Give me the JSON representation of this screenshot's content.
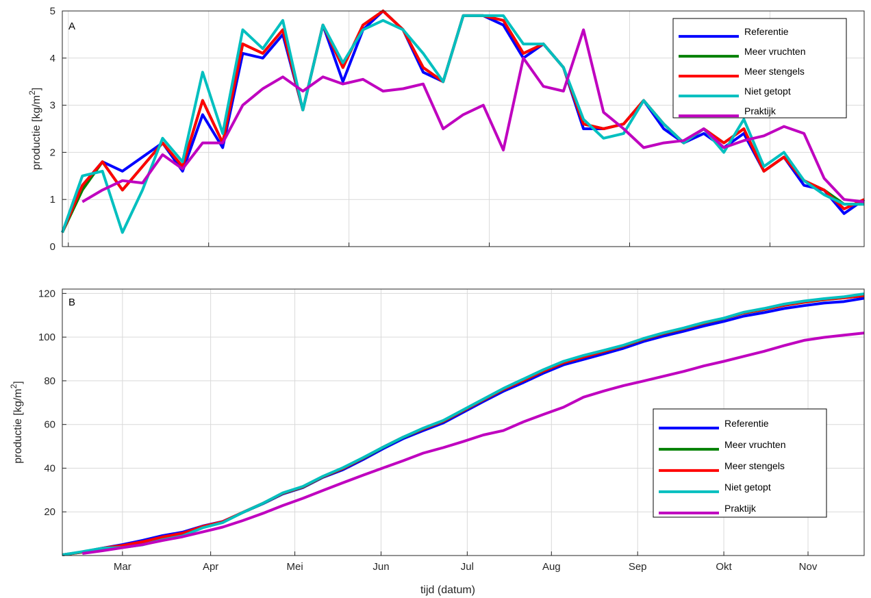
{
  "xlabel": "tijd (datum)",
  "chart_data": [
    {
      "type": "line",
      "panel": "A",
      "ylabel_main": "productie [kg/m",
      "ylabel_sup": "2",
      "ylabel_tail": "]",
      "ylim": [
        0,
        5
      ],
      "yticks": [
        0,
        1,
        2,
        3,
        4,
        5
      ],
      "xlim": [
        0,
        40
      ],
      "xticks_minor": [
        0.3,
        7.3,
        14.3,
        21.3,
        28.3,
        35.3
      ],
      "grid": true,
      "legend_position": "top-right",
      "series": [
        {
          "name": "Referentie",
          "color": "#0000ff",
          "x": [
            0,
            1,
            2,
            3,
            4,
            5,
            6,
            7,
            8,
            9,
            10,
            11,
            12,
            13,
            14,
            15,
            16,
            17,
            18,
            19,
            20,
            21,
            22,
            23,
            24,
            25,
            26,
            27,
            28,
            29,
            30,
            31,
            32,
            33,
            34,
            35,
            36,
            37,
            38,
            39,
            40
          ],
          "values": [
            0.3,
            1.3,
            1.8,
            1.6,
            1.9,
            2.2,
            1.6,
            2.8,
            2.1,
            4.1,
            4.0,
            4.5,
            2.9,
            4.7,
            3.5,
            4.6,
            5.0,
            4.6,
            3.7,
            3.5,
            4.9,
            4.9,
            4.7,
            4.0,
            4.3,
            3.8,
            2.5,
            2.5,
            2.6,
            3.1,
            2.5,
            2.2,
            2.4,
            2.1,
            2.4,
            1.6,
            1.9,
            1.3,
            1.2,
            0.7,
            1.0
          ]
        },
        {
          "name": "Meer vruchten",
          "color": "#008000",
          "x": [
            0,
            1,
            2,
            3,
            4,
            5,
            6,
            7,
            8,
            9,
            10,
            11,
            12,
            13,
            14,
            15,
            16,
            17,
            18,
            19,
            20,
            21,
            22,
            23,
            24,
            25,
            26,
            27,
            28,
            29,
            30,
            31,
            32,
            33,
            34,
            35,
            36,
            37,
            38,
            39,
            40
          ],
          "values": [
            0.3,
            1.2,
            1.8,
            1.2,
            1.7,
            2.2,
            1.7,
            3.1,
            2.2,
            4.3,
            4.1,
            4.6,
            2.9,
            4.7,
            3.8,
            4.7,
            5.0,
            4.6,
            3.8,
            3.5,
            4.9,
            4.9,
            4.8,
            4.1,
            4.3,
            3.8,
            2.6,
            2.5,
            2.6,
            3.1,
            2.6,
            2.2,
            2.5,
            2.2,
            2.5,
            1.6,
            1.9,
            1.4,
            1.2,
            0.9,
            0.9
          ]
        },
        {
          "name": "Meer stengels",
          "color": "#ff0000",
          "x": [
            0,
            1,
            2,
            3,
            4,
            5,
            6,
            7,
            8,
            9,
            10,
            11,
            12,
            13,
            14,
            15,
            16,
            17,
            18,
            19,
            20,
            21,
            22,
            23,
            24,
            25,
            26,
            27,
            28,
            29,
            30,
            31,
            32,
            33,
            34,
            35,
            36,
            37,
            38,
            39,
            40
          ],
          "values": [
            0.3,
            1.3,
            1.8,
            1.2,
            1.7,
            2.2,
            1.7,
            3.1,
            2.2,
            4.3,
            4.1,
            4.6,
            2.9,
            4.7,
            3.8,
            4.7,
            5.0,
            4.6,
            3.8,
            3.5,
            4.9,
            4.9,
            4.8,
            4.1,
            4.3,
            3.8,
            2.6,
            2.5,
            2.6,
            3.1,
            2.6,
            2.2,
            2.5,
            2.2,
            2.5,
            1.6,
            1.9,
            1.4,
            1.2,
            0.8,
            1.0
          ]
        },
        {
          "name": "Niet getopt",
          "color": "#00bfbf",
          "x": [
            0,
            1,
            2,
            3,
            4,
            5,
            6,
            7,
            8,
            9,
            10,
            11,
            12,
            13,
            14,
            15,
            16,
            17,
            18,
            19,
            20,
            21,
            22,
            23,
            24,
            25,
            26,
            27,
            28,
            29,
            30,
            31,
            32,
            33,
            34,
            35,
            36,
            37,
            38,
            39,
            40
          ],
          "values": [
            0.3,
            1.5,
            1.6,
            0.3,
            1.2,
            2.3,
            1.8,
            3.7,
            2.4,
            4.6,
            4.2,
            4.8,
            2.9,
            4.7,
            3.9,
            4.6,
            4.8,
            4.6,
            4.1,
            3.5,
            4.9,
            4.9,
            4.9,
            4.3,
            4.3,
            3.8,
            2.7,
            2.3,
            2.4,
            3.1,
            2.6,
            2.2,
            2.5,
            2.0,
            2.7,
            1.7,
            2.0,
            1.4,
            1.1,
            0.9,
            0.9
          ]
        },
        {
          "name": "Praktijk",
          "color": "#bf00bf",
          "x": [
            1,
            2,
            3,
            4,
            5,
            6,
            7,
            8,
            9,
            10,
            11,
            12,
            13,
            14,
            15,
            16,
            17,
            18,
            19,
            20,
            21,
            22,
            23,
            24,
            25,
            26,
            27,
            28,
            29,
            30,
            31,
            32,
            33,
            34,
            35,
            36,
            37,
            38,
            39,
            40
          ],
          "values": [
            0.95,
            1.2,
            1.4,
            1.35,
            1.95,
            1.65,
            2.2,
            2.2,
            3.0,
            3.35,
            3.6,
            3.3,
            3.6,
            3.45,
            3.55,
            3.3,
            3.35,
            3.45,
            2.5,
            2.8,
            3.0,
            2.05,
            4.0,
            3.4,
            3.3,
            4.6,
            2.85,
            2.5,
            2.1,
            2.2,
            2.25,
            2.5,
            2.1,
            2.25,
            2.35,
            2.55,
            2.4,
            1.45,
            1.0,
            0.95
          ]
        }
      ]
    },
    {
      "type": "line",
      "panel": "B",
      "ylabel_main": "productie [kg/m",
      "ylabel_sup": "2",
      "ylabel_tail": "]",
      "ylim": [
        0,
        122
      ],
      "yticks": [
        20,
        40,
        60,
        80,
        100,
        120
      ],
      "xlim": [
        0,
        40
      ],
      "months": [
        "Mar",
        "Apr",
        "Mei",
        "Jun",
        "Jul",
        "Aug",
        "Sep",
        "Okt",
        "Nov"
      ],
      "month_positions": [
        3,
        7.4,
        11.6,
        15.9,
        20.2,
        24.4,
        28.7,
        33.0,
        37.2
      ],
      "grid": true,
      "legend_position": "center-right",
      "series": [
        {
          "name": "Referentie",
          "color": "#0000ff",
          "x": [
            0,
            1,
            2,
            3,
            4,
            5,
            6,
            7,
            8,
            9,
            10,
            11,
            12,
            13,
            14,
            15,
            16,
            17,
            18,
            19,
            20,
            21,
            22,
            23,
            24,
            25,
            26,
            27,
            28,
            29,
            30,
            31,
            32,
            33,
            34,
            35,
            36,
            37,
            38,
            39,
            40
          ],
          "values": [
            0.3,
            1.6,
            3.4,
            5.0,
            6.9,
            9.1,
            10.7,
            13.5,
            15.6,
            19.7,
            23.7,
            28.2,
            31.1,
            35.8,
            39.3,
            43.9,
            48.9,
            53.5,
            57.2,
            60.7,
            65.6,
            70.5,
            75.2,
            79.2,
            83.5,
            87.3,
            89.8,
            92.3,
            94.9,
            98.0,
            100.5,
            102.7,
            105.1,
            107.2,
            109.6,
            111.2,
            113.1,
            114.4,
            115.6,
            116.3,
            117.8
          ]
        },
        {
          "name": "Meer vruchten",
          "color": "#008000",
          "x": [
            0,
            1,
            2,
            3,
            4,
            5,
            6,
            7,
            8,
            9,
            10,
            11,
            12,
            13,
            14,
            15,
            16,
            17,
            18,
            19,
            20,
            21,
            22,
            23,
            24,
            25,
            26,
            27,
            28,
            29,
            30,
            31,
            32,
            33,
            34,
            35,
            36,
            37,
            38,
            39,
            40
          ],
          "values": [
            0.3,
            1.5,
            3.3,
            4.5,
            6.2,
            8.4,
            10.1,
            13.2,
            15.4,
            19.7,
            23.8,
            28.4,
            31.3,
            36.0,
            39.8,
            44.5,
            49.5,
            54.1,
            57.9,
            61.4,
            66.3,
            71.2,
            76.0,
            80.1,
            84.4,
            88.2,
            90.8,
            93.3,
            95.9,
            99.0,
            101.6,
            103.8,
            106.3,
            108.5,
            111.0,
            112.6,
            114.5,
            115.9,
            117.1,
            118.0,
            118.9
          ]
        },
        {
          "name": "Meer stengels",
          "color": "#ff0000",
          "x": [
            0,
            1,
            2,
            3,
            4,
            5,
            6,
            7,
            8,
            9,
            10,
            11,
            12,
            13,
            14,
            15,
            16,
            17,
            18,
            19,
            20,
            21,
            22,
            23,
            24,
            25,
            26,
            27,
            28,
            29,
            30,
            31,
            32,
            33,
            34,
            35,
            36,
            37,
            38,
            39,
            40
          ],
          "values": [
            0.3,
            1.6,
            3.4,
            4.6,
            6.3,
            8.5,
            10.2,
            13.3,
            15.5,
            19.8,
            23.9,
            28.5,
            31.4,
            36.1,
            39.9,
            44.6,
            49.6,
            54.2,
            58.0,
            61.5,
            66.4,
            71.3,
            76.1,
            80.2,
            84.5,
            88.3,
            90.9,
            93.4,
            96.0,
            99.1,
            101.7,
            103.9,
            106.4,
            108.6,
            111.1,
            112.7,
            114.6,
            116.0,
            117.2,
            118.0,
            119.0
          ]
        },
        {
          "name": "Niet getopt",
          "color": "#00bfbf",
          "x": [
            0,
            1,
            2,
            3,
            4,
            5,
            6,
            7,
            8,
            9,
            10,
            11,
            12,
            13,
            14,
            15,
            16,
            17,
            18,
            19,
            20,
            21,
            22,
            23,
            24,
            25,
            26,
            27,
            28,
            29,
            30,
            31,
            32,
            33,
            34,
            35,
            36,
            37,
            38,
            39,
            40
          ],
          "values": [
            0.3,
            1.8,
            3.4,
            3.7,
            4.9,
            7.2,
            9.0,
            12.7,
            15.1,
            19.7,
            23.9,
            28.7,
            31.6,
            36.3,
            40.2,
            44.8,
            49.6,
            54.2,
            58.3,
            61.8,
            66.7,
            71.6,
            76.5,
            80.8,
            85.1,
            88.9,
            91.6,
            93.9,
            96.3,
            99.4,
            102.0,
            104.2,
            106.7,
            108.7,
            111.4,
            113.1,
            115.1,
            116.5,
            117.6,
            118.5,
            119.8
          ]
        },
        {
          "name": "Praktijk",
          "color": "#bf00bf",
          "x": [
            1,
            2,
            3,
            4,
            5,
            6,
            7,
            8,
            9,
            10,
            11,
            12,
            13,
            14,
            15,
            16,
            17,
            18,
            19,
            20,
            21,
            22,
            23,
            24,
            25,
            26,
            27,
            28,
            29,
            30,
            31,
            32,
            33,
            34,
            35,
            36,
            37,
            38,
            39,
            40
          ],
          "values": [
            0.95,
            2.2,
            3.6,
            5.0,
            6.9,
            8.6,
            10.8,
            13.0,
            16.0,
            19.3,
            22.9,
            26.2,
            29.8,
            33.3,
            36.8,
            40.1,
            43.4,
            46.9,
            49.4,
            52.2,
            55.2,
            57.2,
            61.2,
            64.6,
            67.9,
            72.5,
            75.3,
            77.8,
            79.9,
            82.1,
            84.3,
            86.8,
            88.9,
            91.2,
            93.5,
            96.1,
            98.5,
            99.9,
            100.9,
            101.9
          ]
        }
      ]
    }
  ]
}
